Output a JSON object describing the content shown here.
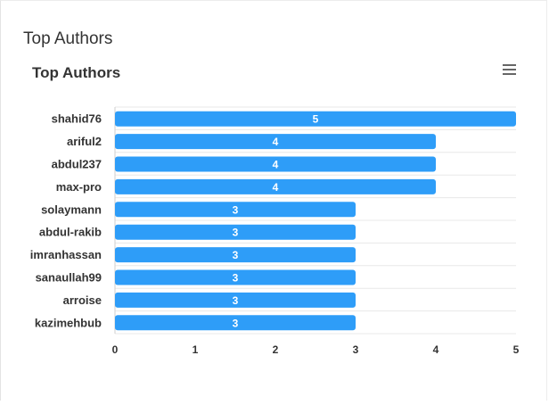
{
  "card": {
    "title": "Top Authors"
  },
  "toolbar": {
    "menu_icon": "hamburger-menu-icon"
  },
  "colors": {
    "bar": "#2e9df8",
    "grid": "#e8e8e8",
    "label": "#333333",
    "bar_label": "#ffffff"
  },
  "chart_data": {
    "type": "bar",
    "orientation": "horizontal",
    "title": "Top Authors",
    "categories": [
      "shahid76",
      "ariful2",
      "abdul237",
      "max-pro",
      "solaymann",
      "abdul-rakib",
      "imranhassan",
      "sanaullah99",
      "arroise",
      "kazimehbub"
    ],
    "values": [
      5,
      4,
      4,
      4,
      3,
      3,
      3,
      3,
      3,
      3
    ],
    "x_ticks": [
      "0",
      "1",
      "2",
      "3",
      "4",
      "5"
    ],
    "xlim": [
      0,
      5
    ],
    "data_labels": true,
    "grid": true,
    "legend": "none"
  }
}
